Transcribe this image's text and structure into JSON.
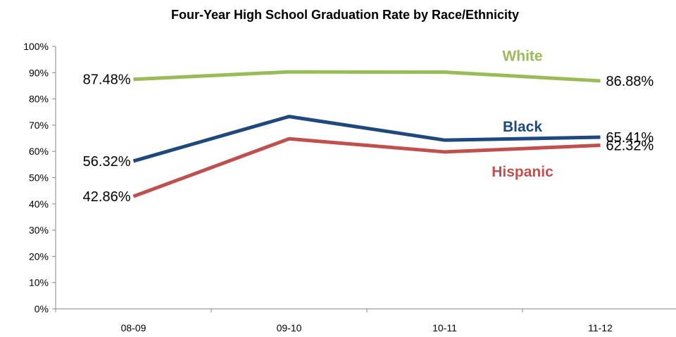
{
  "chart_data": {
    "type": "line",
    "title": "Four-Year High School Graduation Rate by Race/Ethnicity",
    "xlabel": "",
    "ylabel": "",
    "categories": [
      "08-09",
      "09-10",
      "10-11",
      "11-12"
    ],
    "ylim": [
      0,
      100
    ],
    "yticks": [
      "0%",
      "10%",
      "20%",
      "30%",
      "40%",
      "50%",
      "60%",
      "70%",
      "80%",
      "90%",
      "100%"
    ],
    "grid": false,
    "series": [
      {
        "name": "White",
        "color": "#9bbb59",
        "values": [
          87.48,
          90.3,
          90.2,
          86.88
        ],
        "start_label": "87.48%",
        "end_label": "86.88%"
      },
      {
        "name": "Black",
        "color": "#1f497d",
        "values": [
          56.32,
          73.3,
          64.3,
          65.41
        ],
        "start_label": "56.32%",
        "end_label": "65.41%"
      },
      {
        "name": "Hispanic",
        "color": "#c0504d",
        "values": [
          42.86,
          64.8,
          59.8,
          62.32
        ],
        "start_label": "42.86%",
        "end_label": "62.32%"
      }
    ]
  }
}
